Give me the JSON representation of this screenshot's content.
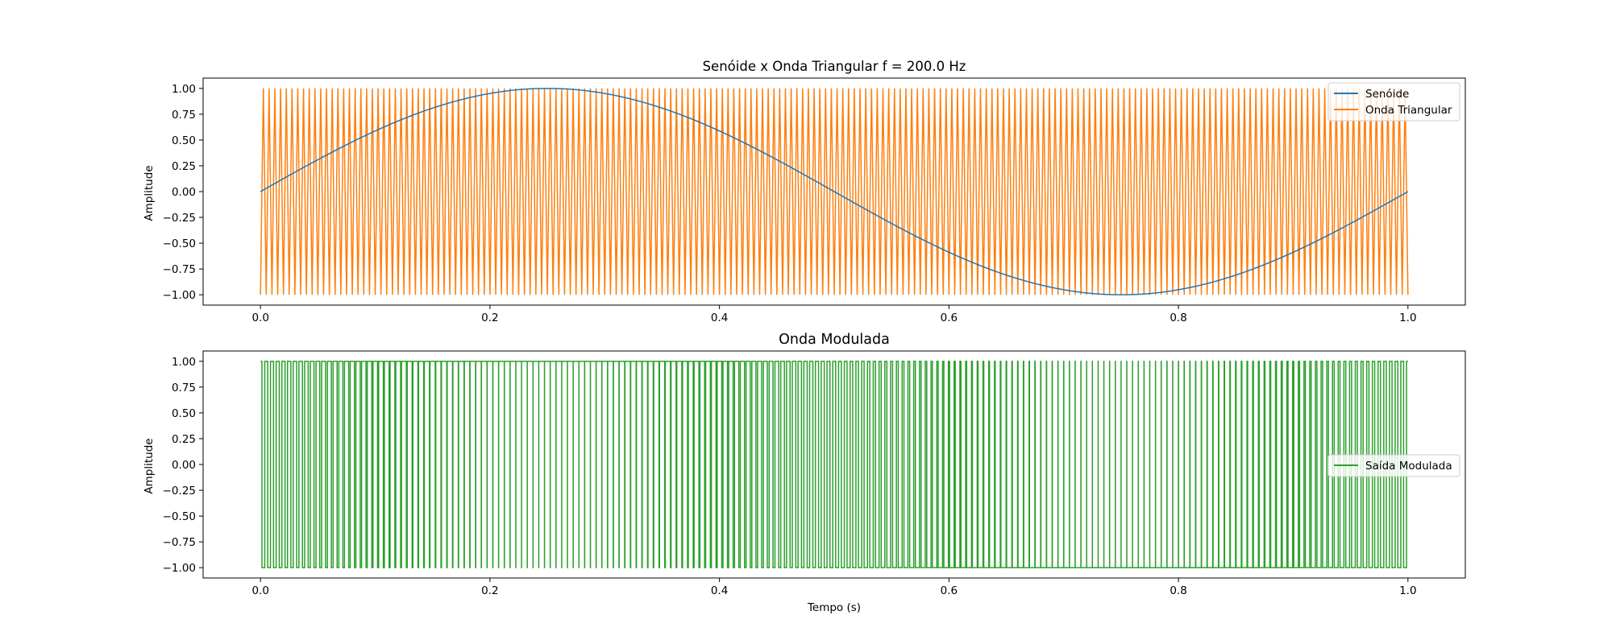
{
  "colors": {
    "sinusoid": "#1f77b4",
    "triangle": "#ff7f0e",
    "modulated": "#2ca02c",
    "axes": "#000000",
    "legend_border": "#cccccc"
  },
  "chart_data": [
    {
      "type": "line",
      "title": "Senóide x Onda Triangular f = 200.0 Hz",
      "xlabel": "",
      "ylabel": "Amplitude",
      "xlim": [
        -0.05,
        1.05
      ],
      "ylim": [
        -1.1,
        1.1
      ],
      "xticks": [
        0.0,
        0.2,
        0.4,
        0.6,
        0.8,
        1.0
      ],
      "xtick_labels": [
        "0.0",
        "0.2",
        "0.4",
        "0.6",
        "0.8",
        "1.0"
      ],
      "yticks": [
        1.0,
        0.75,
        0.5,
        0.25,
        0.0,
        -0.25,
        -0.5,
        -0.75,
        -1.0
      ],
      "ytick_labels": [
        "1.00",
        "0.75",
        "0.50",
        "0.25",
        "0.00",
        "−0.25",
        "−0.50",
        "−0.75",
        "−1.00"
      ],
      "grid": false,
      "legend_position": "top-right",
      "series": [
        {
          "name": "Senóide",
          "function": "sine",
          "amplitude": 1.0,
          "frequency_hz": 1,
          "t_range": [
            0,
            1
          ]
        },
        {
          "name": "Onda Triangular",
          "function": "triangle",
          "amplitude": 1.0,
          "frequency_hz": 200,
          "t_range": [
            0,
            1
          ]
        }
      ]
    },
    {
      "type": "line",
      "title": "Onda Modulada",
      "xlabel": "Tempo (s)",
      "ylabel": "Amplitude",
      "xlim": [
        -0.05,
        1.05
      ],
      "ylim": [
        -1.1,
        1.1
      ],
      "xticks": [
        0.0,
        0.2,
        0.4,
        0.6,
        0.8,
        1.0
      ],
      "xtick_labels": [
        "0.0",
        "0.2",
        "0.4",
        "0.6",
        "0.8",
        "1.0"
      ],
      "yticks": [
        1.0,
        0.75,
        0.5,
        0.25,
        0.0,
        -0.25,
        -0.5,
        -0.75,
        -1.0
      ],
      "ytick_labels": [
        "1.00",
        "0.75",
        "0.50",
        "0.25",
        "0.00",
        "−0.25",
        "−0.50",
        "−0.75",
        "−1.00"
      ],
      "grid": false,
      "legend_position": "center-right",
      "series": [
        {
          "name": "Saída Modulada",
          "function": "pwm",
          "carrier_frequency_hz": 200,
          "levels": [
            -1,
            1
          ],
          "t_range": [
            0,
            1
          ]
        }
      ]
    }
  ]
}
